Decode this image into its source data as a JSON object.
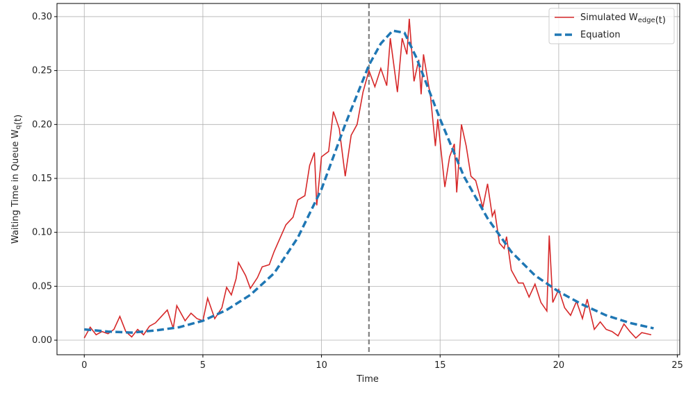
{
  "chart_data": {
    "type": "line",
    "x_label": "Time",
    "y_label": "Waiting Time in Queue W_q(t)",
    "xlim": [
      -1.15,
      25.1
    ],
    "ylim": [
      -0.0135,
      0.3122
    ],
    "xticks": [
      0,
      5,
      10,
      15,
      20,
      25
    ],
    "yticks": [
      {
        "value": 0,
        "label": "0.00"
      },
      {
        "value": 0.05,
        "label": "0.05"
      },
      {
        "value": 0.1,
        "label": "0.10"
      },
      {
        "value": 0.15,
        "label": "0.15"
      },
      {
        "value": 0.2,
        "label": "0.20"
      },
      {
        "value": 0.25,
        "label": "0.25"
      },
      {
        "value": 0.3,
        "label": "0.30"
      }
    ],
    "grid": true,
    "legend": "upper right",
    "vline": 12,
    "series": [
      {
        "name": "Simulated W_edge(t)",
        "color": "#d62728",
        "style": "solid",
        "x": [
          0,
          0.25,
          0.5,
          0.75,
          1,
          1.25,
          1.5,
          1.75,
          2,
          2.25,
          2.5,
          2.75,
          3,
          3.25,
          3.5,
          3.75,
          3.9,
          4.25,
          4.5,
          4.75,
          5,
          5.2,
          5.5,
          5.8,
          6,
          6.2,
          6.4,
          6.5,
          6.8,
          7,
          7.3,
          7.5,
          7.8,
          8,
          8.2,
          8.5,
          8.8,
          9,
          9.3,
          9.5,
          9.7,
          9.8,
          10,
          10.3,
          10.5,
          10.75,
          11,
          11.25,
          11.5,
          11.75,
          12,
          12.25,
          12.5,
          12.75,
          12.9,
          13.2,
          13.4,
          13.6,
          13.7,
          13.9,
          14.1,
          14.2,
          14.3,
          14.6,
          14.8,
          14.9,
          15.2,
          15.4,
          15.6,
          15.7,
          15.9,
          16.1,
          16.3,
          16.5,
          16.8,
          17,
          17.2,
          17.3,
          17.5,
          17.7,
          17.8,
          18,
          18.3,
          18.5,
          18.75,
          19,
          19.25,
          19.5,
          19.6,
          19.75,
          20,
          20.25,
          20.5,
          20.75,
          21,
          21.2,
          21.5,
          21.75,
          22,
          22.25,
          22.5,
          22.75,
          23,
          23.25,
          23.5,
          23.9
        ],
        "values": [
          0.002,
          0.012,
          0.005,
          0.008,
          0.006,
          0.01,
          0.022,
          0.008,
          0.003,
          0.01,
          0.005,
          0.013,
          0.016,
          0.022,
          0.028,
          0.011,
          0.032,
          0.018,
          0.025,
          0.02,
          0.018,
          0.039,
          0.02,
          0.03,
          0.049,
          0.042,
          0.057,
          0.072,
          0.06,
          0.048,
          0.058,
          0.068,
          0.07,
          0.082,
          0.092,
          0.107,
          0.114,
          0.13,
          0.134,
          0.162,
          0.174,
          0.125,
          0.17,
          0.175,
          0.212,
          0.196,
          0.152,
          0.19,
          0.2,
          0.23,
          0.25,
          0.235,
          0.252,
          0.236,
          0.28,
          0.23,
          0.28,
          0.265,
          0.298,
          0.24,
          0.26,
          0.228,
          0.265,
          0.225,
          0.18,
          0.205,
          0.142,
          0.17,
          0.182,
          0.137,
          0.2,
          0.18,
          0.152,
          0.148,
          0.123,
          0.145,
          0.115,
          0.12,
          0.09,
          0.085,
          0.096,
          0.065,
          0.053,
          0.053,
          0.04,
          0.052,
          0.035,
          0.027,
          0.097,
          0.035,
          0.047,
          0.03,
          0.023,
          0.036,
          0.02,
          0.038,
          0.01,
          0.017,
          0.01,
          0.008,
          0.004,
          0.015,
          0.008,
          0.002,
          0.007,
          0.005
        ]
      },
      {
        "name": "Equation",
        "color": "#1f77b4",
        "style": "dashed",
        "x": [
          0,
          1,
          2,
          3,
          4,
          5,
          6,
          7,
          8,
          9,
          10,
          11,
          12,
          12.5,
          13,
          13.5,
          14,
          15,
          16,
          17,
          18,
          19,
          20,
          21,
          22,
          23,
          24
        ],
        "values": [
          0.01,
          0.008,
          0.007,
          0.009,
          0.012,
          0.018,
          0.028,
          0.042,
          0.062,
          0.095,
          0.14,
          0.2,
          0.255,
          0.275,
          0.287,
          0.285,
          0.262,
          0.205,
          0.152,
          0.113,
          0.082,
          0.06,
          0.045,
          0.033,
          0.023,
          0.016,
          0.011
        ]
      }
    ]
  }
}
